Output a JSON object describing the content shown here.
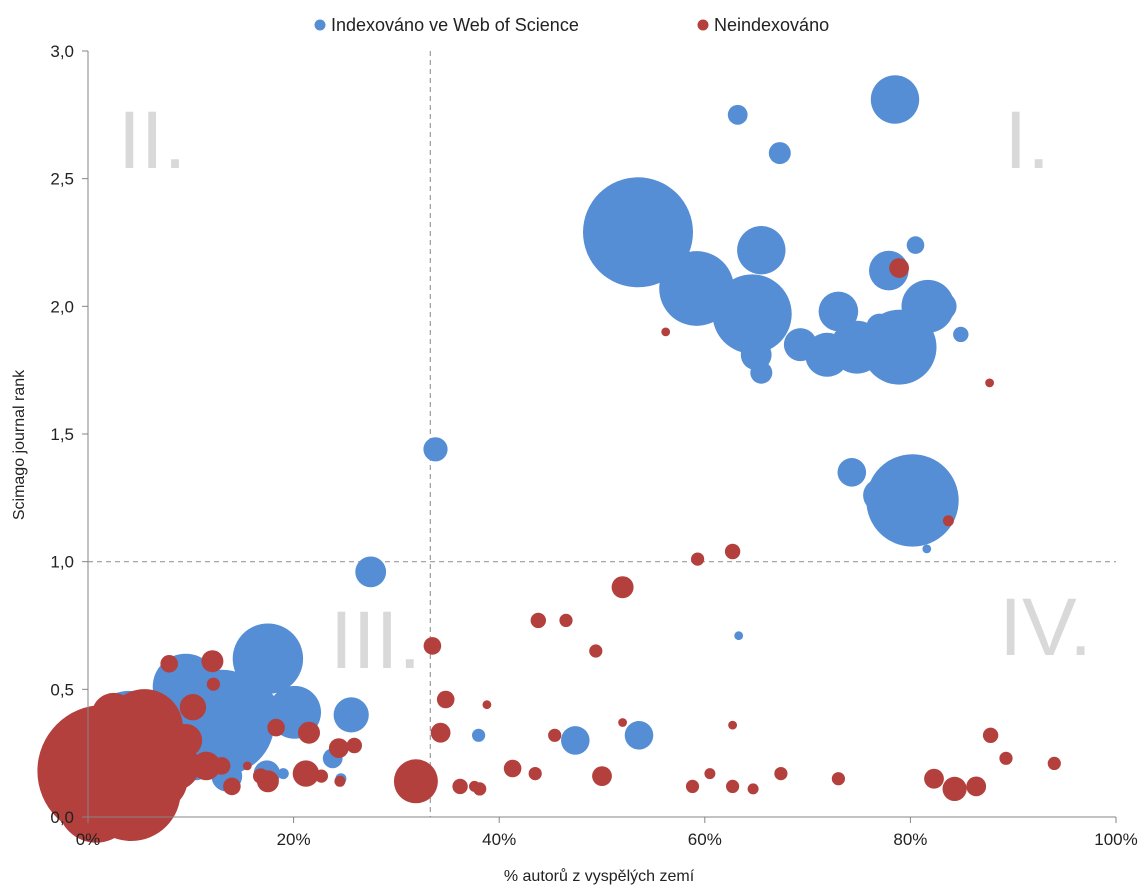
{
  "chart_data": {
    "type": "bubble",
    "xlabel": "% autorů z vyspělých zemí",
    "ylabel": "Scimago journal rank",
    "xlim": [
      0,
      100
    ],
    "ylim": [
      0,
      3
    ],
    "x_ticks": [
      "0%",
      "20%",
      "40%",
      "60%",
      "80%",
      "100%"
    ],
    "x_tick_values": [
      0,
      20,
      40,
      60,
      80,
      100
    ],
    "y_ticks": [
      "0,0",
      "0,5",
      "1,0",
      "1,5",
      "2,0",
      "2,5",
      "3,0"
    ],
    "y_tick_values": [
      0,
      0.5,
      1,
      1.5,
      2,
      2.5,
      3
    ],
    "reference_lines": {
      "x": 33.3,
      "y": 1.0
    },
    "legend_position": "top",
    "quadrant_labels": [
      "I.",
      "II.",
      "III.",
      "IV."
    ],
    "series": [
      {
        "name": "Indexováno ve Web of Science",
        "color": "#558ed5",
        "points": [
          [
            78.5,
            2.81,
            2.2
          ],
          [
            63.2,
            2.75,
            0.9
          ],
          [
            67.3,
            2.6,
            1.0
          ],
          [
            53.5,
            2.29,
            5.0
          ],
          [
            65.5,
            2.22,
            2.2
          ],
          [
            80.5,
            2.24,
            0.8
          ],
          [
            59.2,
            2.07,
            3.4
          ],
          [
            64.6,
            1.97,
            3.6
          ],
          [
            77.9,
            2.14,
            1.8
          ],
          [
            81.7,
            2.0,
            2.4
          ],
          [
            83.1,
            2.0,
            1.3
          ],
          [
            73.0,
            1.98,
            1.8
          ],
          [
            77.0,
            1.92,
            1.2
          ],
          [
            78.9,
            1.84,
            3.4
          ],
          [
            74.8,
            1.84,
            2.4
          ],
          [
            69.3,
            1.85,
            1.5
          ],
          [
            71.9,
            1.81,
            2.0
          ],
          [
            65.0,
            1.81,
            1.4
          ],
          [
            65.5,
            1.74,
            1.0
          ],
          [
            84.9,
            1.89,
            0.7
          ],
          [
            80.2,
            1.24,
            4.2
          ],
          [
            77.0,
            1.26,
            1.5
          ],
          [
            74.3,
            1.35,
            1.3
          ],
          [
            81.6,
            1.05,
            0.4
          ],
          [
            63.3,
            0.71,
            0.4
          ],
          [
            33.8,
            1.44,
            1.1
          ],
          [
            27.5,
            0.96,
            1.4
          ],
          [
            17.5,
            0.62,
            3.2
          ],
          [
            9.5,
            0.51,
            3.0
          ],
          [
            25.6,
            0.4,
            1.6
          ],
          [
            20.1,
            0.41,
            2.4
          ],
          [
            13.0,
            0.37,
            4.8
          ],
          [
            16.5,
            0.43,
            1.8
          ],
          [
            4.0,
            0.33,
            3.8
          ],
          [
            2.8,
            0.22,
            4.0
          ],
          [
            7.5,
            0.28,
            2.8
          ],
          [
            12.0,
            0.25,
            2.2
          ],
          [
            17.4,
            0.17,
            1.2
          ],
          [
            13.5,
            0.16,
            1.4
          ],
          [
            10.5,
            0.2,
            1.3
          ],
          [
            8.8,
            0.16,
            1.0
          ],
          [
            19.0,
            0.17,
            0.5
          ],
          [
            47.4,
            0.3,
            1.3
          ],
          [
            53.6,
            0.32,
            1.3
          ],
          [
            38.0,
            0.32,
            0.6
          ],
          [
            23.8,
            0.23,
            0.9
          ],
          [
            24.6,
            0.15,
            0.5
          ],
          [
            11.5,
            0.38,
            1.6
          ]
        ]
      },
      {
        "name": "Neindexováno",
        "color": "#b3403d",
        "points": [
          [
            78.9,
            2.15,
            0.9
          ],
          [
            56.2,
            1.9,
            0.4
          ],
          [
            87.7,
            1.7,
            0.4
          ],
          [
            83.7,
            1.16,
            0.5
          ],
          [
            59.3,
            1.01,
            0.6
          ],
          [
            62.7,
            1.04,
            0.7
          ],
          [
            52.0,
            0.9,
            1.0
          ],
          [
            43.8,
            0.77,
            0.7
          ],
          [
            46.5,
            0.77,
            0.6
          ],
          [
            33.5,
            0.67,
            0.8
          ],
          [
            49.4,
            0.65,
            0.6
          ],
          [
            34.8,
            0.46,
            0.8
          ],
          [
            38.8,
            0.44,
            0.4
          ],
          [
            52.0,
            0.37,
            0.4
          ],
          [
            62.7,
            0.36,
            0.4
          ],
          [
            34.3,
            0.33,
            0.9
          ],
          [
            45.4,
            0.32,
            0.6
          ],
          [
            87.8,
            0.32,
            0.7
          ],
          [
            89.3,
            0.23,
            0.6
          ],
          [
            94.0,
            0.21,
            0.6
          ],
          [
            41.3,
            0.19,
            0.8
          ],
          [
            43.5,
            0.17,
            0.6
          ],
          [
            50.0,
            0.16,
            0.9
          ],
          [
            60.5,
            0.17,
            0.5
          ],
          [
            67.4,
            0.17,
            0.6
          ],
          [
            73.0,
            0.15,
            0.6
          ],
          [
            82.3,
            0.15,
            0.9
          ],
          [
            58.8,
            0.12,
            0.6
          ],
          [
            62.7,
            0.12,
            0.6
          ],
          [
            64.7,
            0.11,
            0.5
          ],
          [
            84.3,
            0.11,
            1.1
          ],
          [
            86.4,
            0.12,
            0.9
          ],
          [
            31.9,
            0.14,
            2.0
          ],
          [
            36.2,
            0.12,
            0.7
          ],
          [
            37.6,
            0.12,
            0.5
          ],
          [
            38.1,
            0.11,
            0.6
          ],
          [
            21.2,
            0.17,
            1.2
          ],
          [
            22.7,
            0.16,
            0.6
          ],
          [
            24.4,
            0.27,
            0.9
          ],
          [
            25.9,
            0.28,
            0.7
          ],
          [
            21.5,
            0.33,
            1.0
          ],
          [
            12.1,
            0.61,
            1.0
          ],
          [
            12.2,
            0.52,
            0.6
          ],
          [
            7.9,
            0.6,
            0.8
          ],
          [
            18.3,
            0.35,
            0.8
          ],
          [
            10.2,
            0.43,
            1.2
          ],
          [
            11.5,
            0.2,
            1.3
          ],
          [
            14.0,
            0.12,
            0.8
          ],
          [
            1.5,
            0.18,
            6.0
          ],
          [
            3.5,
            0.25,
            5.0
          ],
          [
            5.5,
            0.35,
            3.5
          ],
          [
            6.5,
            0.15,
            3.0
          ],
          [
            4.2,
            0.1,
            4.5
          ],
          [
            0.8,
            0.05,
            3.5
          ],
          [
            8.5,
            0.2,
            2.2
          ],
          [
            9.5,
            0.3,
            1.5
          ],
          [
            17.5,
            0.14,
            1.0
          ],
          [
            16.8,
            0.16,
            0.7
          ],
          [
            20.8,
            0.19,
            0.5
          ],
          [
            24.5,
            0.14,
            0.5
          ],
          [
            15.5,
            0.2,
            0.4
          ],
          [
            13.0,
            0.2,
            0.8
          ],
          [
            2.5,
            0.4,
            2.0
          ]
        ]
      }
    ]
  }
}
